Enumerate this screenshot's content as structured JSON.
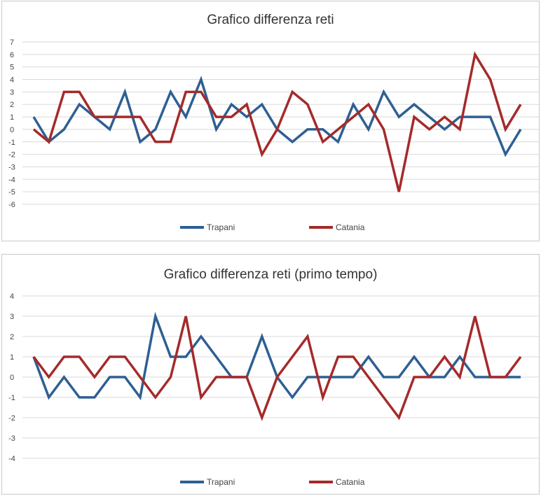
{
  "colors": {
    "trapani": "#2e5f93",
    "catania": "#a52a2a"
  },
  "chart_data": [
    {
      "type": "line",
      "title": "Grafico differenza reti",
      "ylim": [
        -6,
        7
      ],
      "y_ticks": [
        "7",
        "6",
        "5",
        "4",
        "3",
        "2",
        "1",
        "0",
        "-1",
        "-2",
        "-3",
        "-4",
        "-5",
        "-6"
      ],
      "grid": true,
      "legend": "bottom",
      "series": [
        {
          "name": "Trapani",
          "color": "#2e5f93",
          "values": [
            1,
            -1,
            0,
            2,
            1,
            0,
            3,
            -1,
            0,
            3,
            1,
            4,
            0,
            2,
            1,
            2,
            0,
            -1,
            0,
            0,
            -1,
            2,
            0,
            3,
            1,
            2,
            1,
            0,
            1,
            1,
            1,
            -2,
            0
          ]
        },
        {
          "name": "Catania",
          "color": "#a52a2a",
          "values": [
            0,
            -1,
            3,
            3,
            1,
            1,
            1,
            1,
            -1,
            -1,
            3,
            3,
            1,
            1,
            2,
            -2,
            0,
            3,
            2,
            -1,
            0,
            1,
            2,
            0,
            -5,
            1,
            0,
            1,
            0,
            6,
            4,
            0,
            2
          ]
        }
      ]
    },
    {
      "type": "line",
      "title": "Grafico differenza reti (primo tempo)",
      "ylim": [
        -4,
        4
      ],
      "y_ticks": [
        "4",
        "3",
        "2",
        "1",
        "0",
        "-1",
        "-2",
        "-3",
        "-4"
      ],
      "grid": true,
      "legend": "bottom",
      "series": [
        {
          "name": "Trapani",
          "color": "#2e5f93",
          "values": [
            1,
            -1,
            0,
            -1,
            -1,
            0,
            0,
            -1,
            3,
            1,
            1,
            2,
            1,
            0,
            0,
            2,
            0,
            -1,
            0,
            0,
            0,
            0,
            1,
            0,
            0,
            1,
            0,
            0,
            1,
            0,
            0,
            0,
            0
          ]
        },
        {
          "name": "Catania",
          "color": "#a52a2a",
          "values": [
            1,
            0,
            1,
            1,
            0,
            1,
            1,
            0,
            -1,
            0,
            3,
            -1,
            0,
            0,
            0,
            -2,
            0,
            1,
            2,
            -1,
            1,
            1,
            0,
            -1,
            -2,
            0,
            0,
            1,
            0,
            3,
            0,
            0,
            1
          ]
        }
      ]
    }
  ]
}
